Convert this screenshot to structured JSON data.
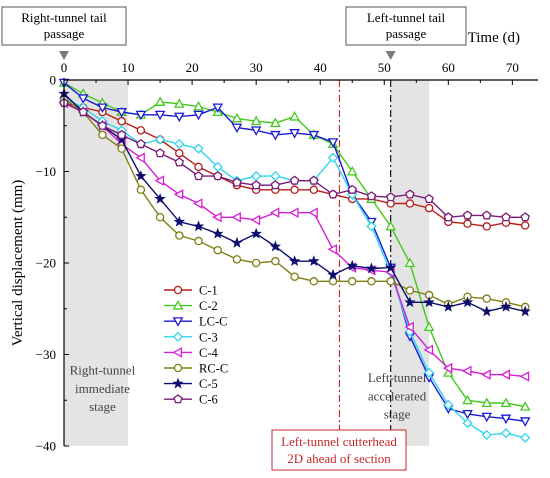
{
  "chart_data": {
    "type": "line",
    "xlabel": "Time (d)",
    "ylabel": "Vertical displacement (mm)",
    "xlim": [
      0,
      74
    ],
    "ylim": [
      -40,
      0
    ],
    "x_axis_position": "top",
    "xticks": [
      0,
      10,
      20,
      30,
      40,
      50,
      60,
      70
    ],
    "yticks": [
      0,
      -10,
      -20,
      -30,
      -40
    ],
    "grid": false,
    "legend_position": "center-left",
    "series": [
      {
        "name": "C-1",
        "color": "#b71c1c",
        "marker": "circle",
        "x": [
          0,
          3,
          6,
          9,
          12,
          15,
          18,
          21,
          24,
          27,
          30,
          33,
          36,
          39,
          42,
          45,
          48,
          51,
          54,
          57,
          60,
          63,
          66,
          69,
          72
        ],
        "y": [
          -2.5,
          -3,
          -3.5,
          -4.5,
          -5.5,
          -6.5,
          -8,
          -9.5,
          -10.5,
          -11.5,
          -12,
          -12,
          -12,
          -12,
          -12.5,
          -13,
          -13,
          -13.5,
          -13.5,
          -14,
          -15.5,
          -15.7,
          -16,
          -15.6,
          -15.9
        ]
      },
      {
        "name": "C-2",
        "color": "#43c91d",
        "marker": "triangle-up",
        "x": [
          0,
          3,
          6,
          9,
          12,
          15,
          18,
          21,
          24,
          27,
          30,
          33,
          36,
          39,
          42,
          45,
          48,
          51,
          54,
          57,
          60,
          63,
          66,
          69,
          72
        ],
        "y": [
          -0.3,
          -1.5,
          -2.5,
          -3.5,
          -3.8,
          -2.4,
          -2.6,
          -2.9,
          -3.5,
          -4.2,
          -4.5,
          -4.7,
          -4,
          -6,
          -7,
          -10,
          -13,
          -16,
          -20,
          -27,
          -32,
          -35,
          -35.3,
          -35.3,
          -35.7
        ]
      },
      {
        "name": "LC-C",
        "color": "#1a1ad6",
        "marker": "triangle-down",
        "x": [
          0,
          3,
          6,
          9,
          12,
          15,
          18,
          21,
          24,
          27,
          30,
          33,
          36,
          39,
          42,
          45,
          48,
          51,
          54,
          57,
          60,
          63,
          66,
          69,
          72
        ],
        "y": [
          -0.3,
          -2,
          -3,
          -3.5,
          -3.8,
          -3.8,
          -4,
          -3.8,
          -3,
          -5.2,
          -5.5,
          -6,
          -5.8,
          -6,
          -6.8,
          -12.5,
          -15.5,
          -20.5,
          -28,
          -32.5,
          -35.9,
          -36.5,
          -36.8,
          -37,
          -37.3
        ]
      },
      {
        "name": "C-3",
        "color": "#2fd6f0",
        "marker": "diamond",
        "x": [
          0,
          3,
          6,
          9,
          12,
          15,
          18,
          21,
          24,
          27,
          30,
          33,
          36,
          39,
          42,
          45,
          48,
          51,
          54,
          57,
          60,
          63,
          66,
          69,
          72
        ],
        "y": [
          -2,
          -3,
          -4.5,
          -5.5,
          -7,
          -6.5,
          -7,
          -7.5,
          -9.5,
          -11,
          -10.5,
          -10.5,
          -11,
          -11,
          -8.5,
          -12.5,
          -16,
          -21,
          -27.5,
          -32,
          -35.5,
          -37.5,
          -38.8,
          -38.6,
          -39.1
        ]
      },
      {
        "name": "C-4",
        "color": "#d81ed8",
        "marker": "triangle-left",
        "x": [
          0,
          3,
          6,
          9,
          12,
          15,
          18,
          21,
          24,
          27,
          30,
          33,
          36,
          39,
          42,
          45,
          48,
          51,
          54,
          57,
          60,
          63,
          66,
          69,
          72
        ],
        "y": [
          -2.5,
          -3.5,
          -5,
          -7,
          -8.5,
          -11,
          -12.5,
          -13.5,
          -15,
          -15,
          -15.3,
          -14.5,
          -14.5,
          -14.5,
          -18.5,
          -20.5,
          -20.8,
          -21,
          -27,
          -29.5,
          -31.5,
          -31.8,
          -32.2,
          -32.2,
          -32.4
        ]
      },
      {
        "name": "RC-C",
        "color": "#7f7f16",
        "marker": "circle",
        "x": [
          0,
          3,
          6,
          9,
          12,
          15,
          18,
          21,
          24,
          27,
          30,
          33,
          36,
          39,
          42,
          45,
          48,
          51,
          54,
          57,
          60,
          63,
          66,
          69,
          72
        ],
        "y": [
          -2,
          -3.5,
          -6,
          -7.5,
          -12,
          -15,
          -17,
          -17.6,
          -18.6,
          -19.6,
          -20,
          -19.8,
          -21.5,
          -22,
          -22,
          -22,
          -22,
          -22,
          -23,
          -23.5,
          -24.5,
          -23.7,
          -23.9,
          -24.3,
          -24.8
        ]
      },
      {
        "name": "C-5",
        "color": "#0d0d6e",
        "marker": "star",
        "x": [
          0,
          3,
          6,
          9,
          12,
          15,
          18,
          21,
          24,
          27,
          30,
          33,
          36,
          39,
          42,
          45,
          48,
          51,
          54,
          57,
          60,
          63,
          66,
          69,
          72
        ],
        "y": [
          -1.5,
          -3.5,
          -5,
          -6.5,
          -10.5,
          -13,
          -15.5,
          -16,
          -16.8,
          -17.8,
          -16.8,
          -18.2,
          -19.8,
          -19.8,
          -21.3,
          -20.3,
          -20.6,
          -20.5,
          -24.3,
          -24.3,
          -24.8,
          -24.3,
          -25.3,
          -24.8,
          -25.3
        ]
      },
      {
        "name": "C-6",
        "color": "#7a1b7a",
        "marker": "pentagon",
        "x": [
          0,
          3,
          6,
          9,
          12,
          15,
          18,
          21,
          24,
          27,
          30,
          33,
          36,
          39,
          42,
          45,
          48,
          51,
          54,
          57,
          60,
          63,
          66,
          69,
          72
        ],
        "y": [
          -2.5,
          -3.5,
          -5,
          -6,
          -7,
          -8,
          -9,
          -10.5,
          -10.5,
          -11.2,
          -11.5,
          -11.5,
          -11,
          -11,
          -12.5,
          -12,
          -12.7,
          -12.8,
          -12.5,
          -13,
          -15,
          -14.8,
          -14.8,
          -15,
          -15
        ]
      }
    ],
    "shaded_regions": [
      {
        "x_start": 0,
        "x_end": 10,
        "label": "Right-tunnel immediate stage"
      },
      {
        "x_start": 51,
        "x_end": 57,
        "label": "Left-tunnel accelerated stage"
      }
    ],
    "vertical_lines": [
      {
        "x": 43,
        "color": "#c62828",
        "style": "dash-dot",
        "label": "Left-tunnel cutterhead 2D ahead of section"
      },
      {
        "x": 51,
        "color": "#000000",
        "style": "dash-dot",
        "label": ""
      }
    ],
    "top_markers": [
      {
        "x": 0,
        "label": "Right-tunnel tail passage"
      },
      {
        "x": 51,
        "label": "Left-tunnel tail passage"
      }
    ]
  }
}
